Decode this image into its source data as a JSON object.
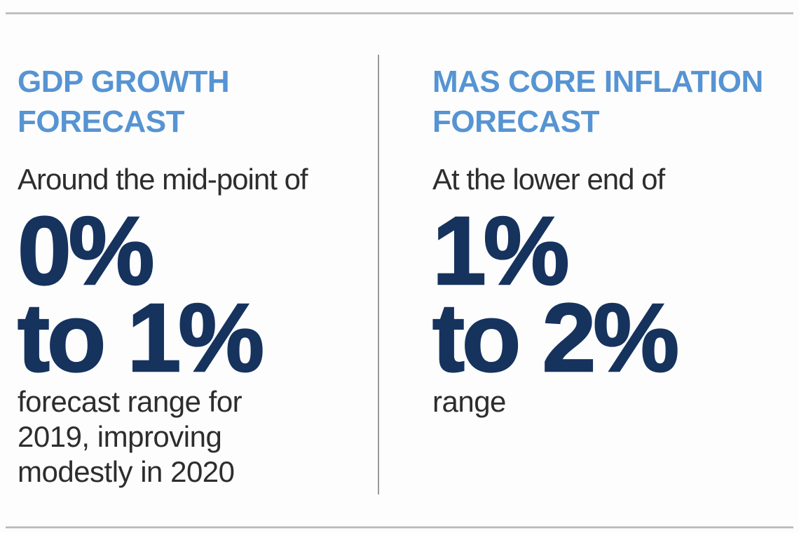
{
  "colors": {
    "background": "#fdfdfd",
    "heading_blue": "#5694d3",
    "figure_navy": "#16335e",
    "body_text": "#2d2d2d",
    "rule_gray": "#8a8a8a",
    "divider_gray": "#9a9a9a"
  },
  "left_panel": {
    "heading_lines": [
      "GDP GROWTH",
      "FORECAST"
    ],
    "lead": "Around the mid-point of",
    "figure_lines": [
      "0%",
      "to 1%"
    ],
    "caption_lines": [
      "forecast range for",
      "2019, improving",
      "modestly in 2020"
    ]
  },
  "right_panel": {
    "heading_lines": [
      "MAS CORE INFLATION",
      "FORECAST"
    ],
    "lead": "At the lower end of",
    "figure_lines": [
      "1%",
      "to 2%"
    ],
    "caption_lines": [
      "range"
    ]
  }
}
